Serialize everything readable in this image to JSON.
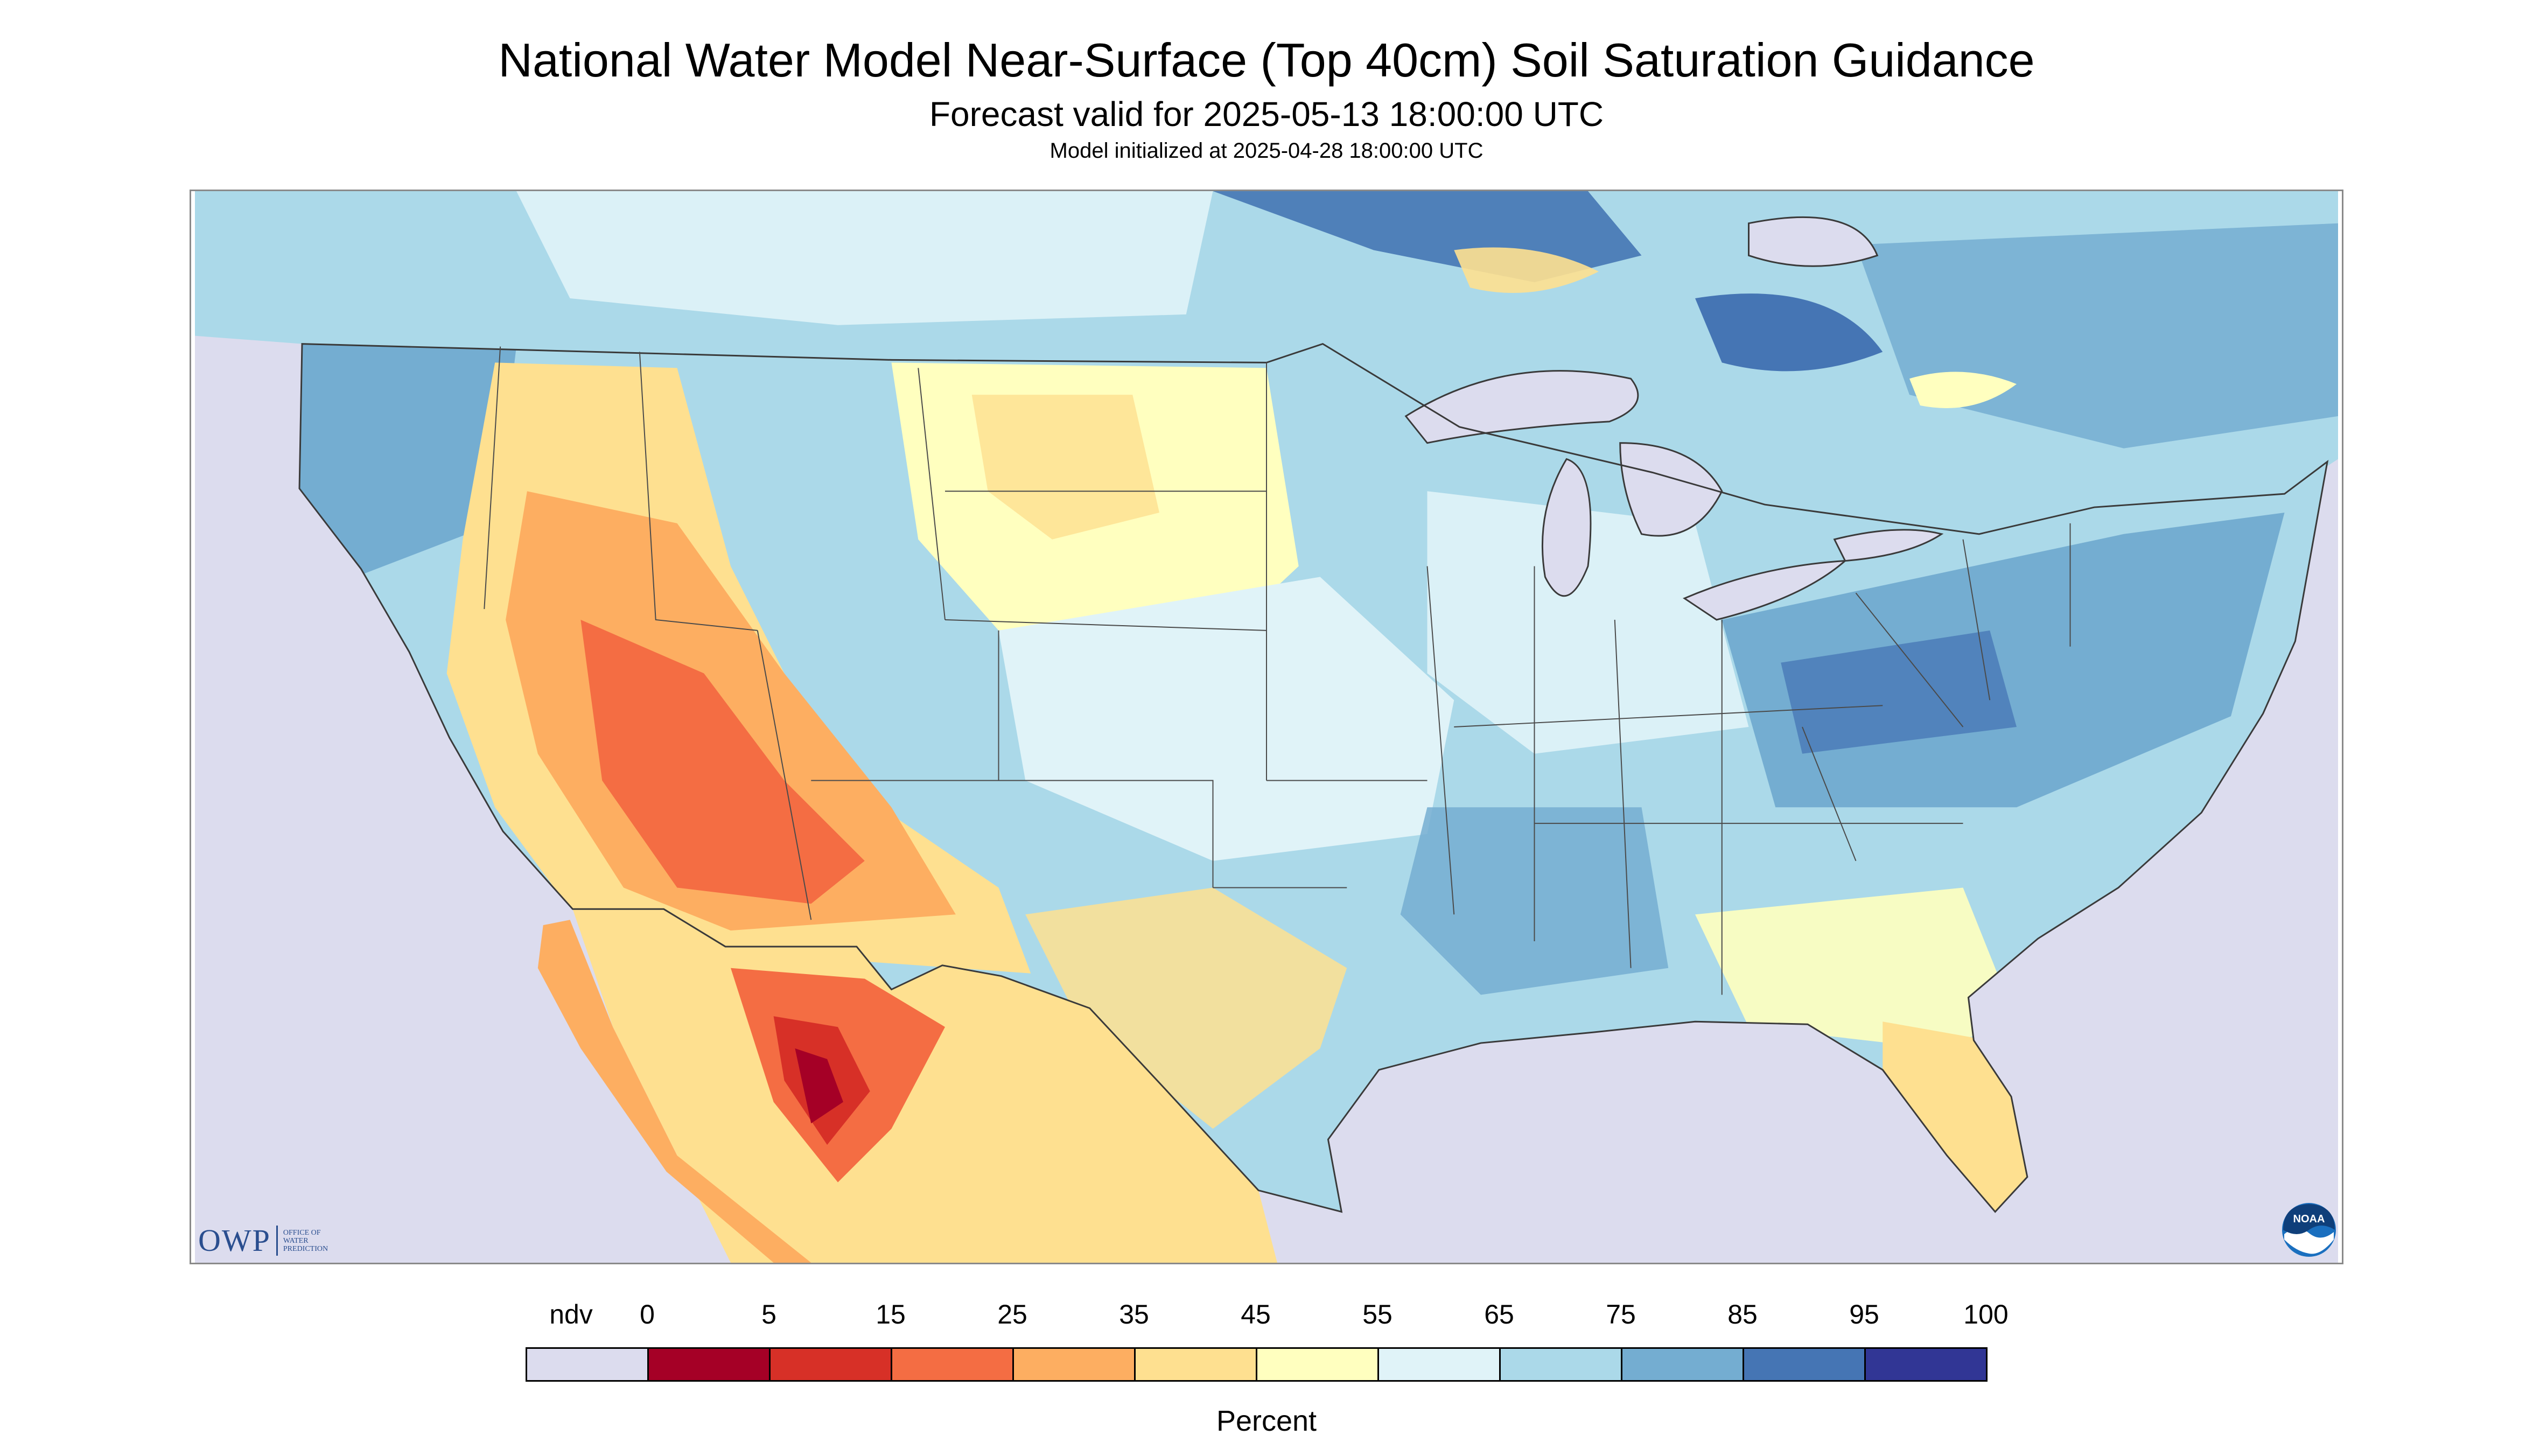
{
  "header": {
    "title": "National Water Model Near-Surface (Top 40cm) Soil Saturation Guidance",
    "subtitle": "Forecast valid for 2025-05-13 18:00:00 UTC",
    "subsubtitle": "Model initialized at 2025-04-28 18:00:00 UTC"
  },
  "map": {
    "region": "Contiguous United States",
    "colors": {
      "ndv": "#dcdcee",
      "water": "#dcdcee",
      "land_outline": "#3a3a3a",
      "state_lines": "#4a4a4a"
    }
  },
  "logos": {
    "owp": {
      "mark": "OWP",
      "line1": "Office of",
      "line2": "Water",
      "line3": "Prediction"
    },
    "noaa": {
      "text": "NOAA",
      "icon": "noaa-logo-icon"
    }
  },
  "legend": {
    "title": "Percent",
    "bins": [
      {
        "label": "ndv",
        "color": "#dcdcee"
      },
      {
        "label": "0",
        "color": "#a50026"
      },
      {
        "label": "5",
        "color": "#d73027"
      },
      {
        "label": "15",
        "color": "#f46d43"
      },
      {
        "label": "25",
        "color": "#fdae61"
      },
      {
        "label": "35",
        "color": "#fee090"
      },
      {
        "label": "45",
        "color": "#ffffbf"
      },
      {
        "label": "55",
        "color": "#e0f3f8"
      },
      {
        "label": "65",
        "color": "#abd9e9"
      },
      {
        "label": "75",
        "color": "#74add1"
      },
      {
        "label": "85",
        "color": "#4575b4"
      },
      {
        "label": "95",
        "color": "#313695"
      }
    ],
    "end_label": "100"
  }
}
